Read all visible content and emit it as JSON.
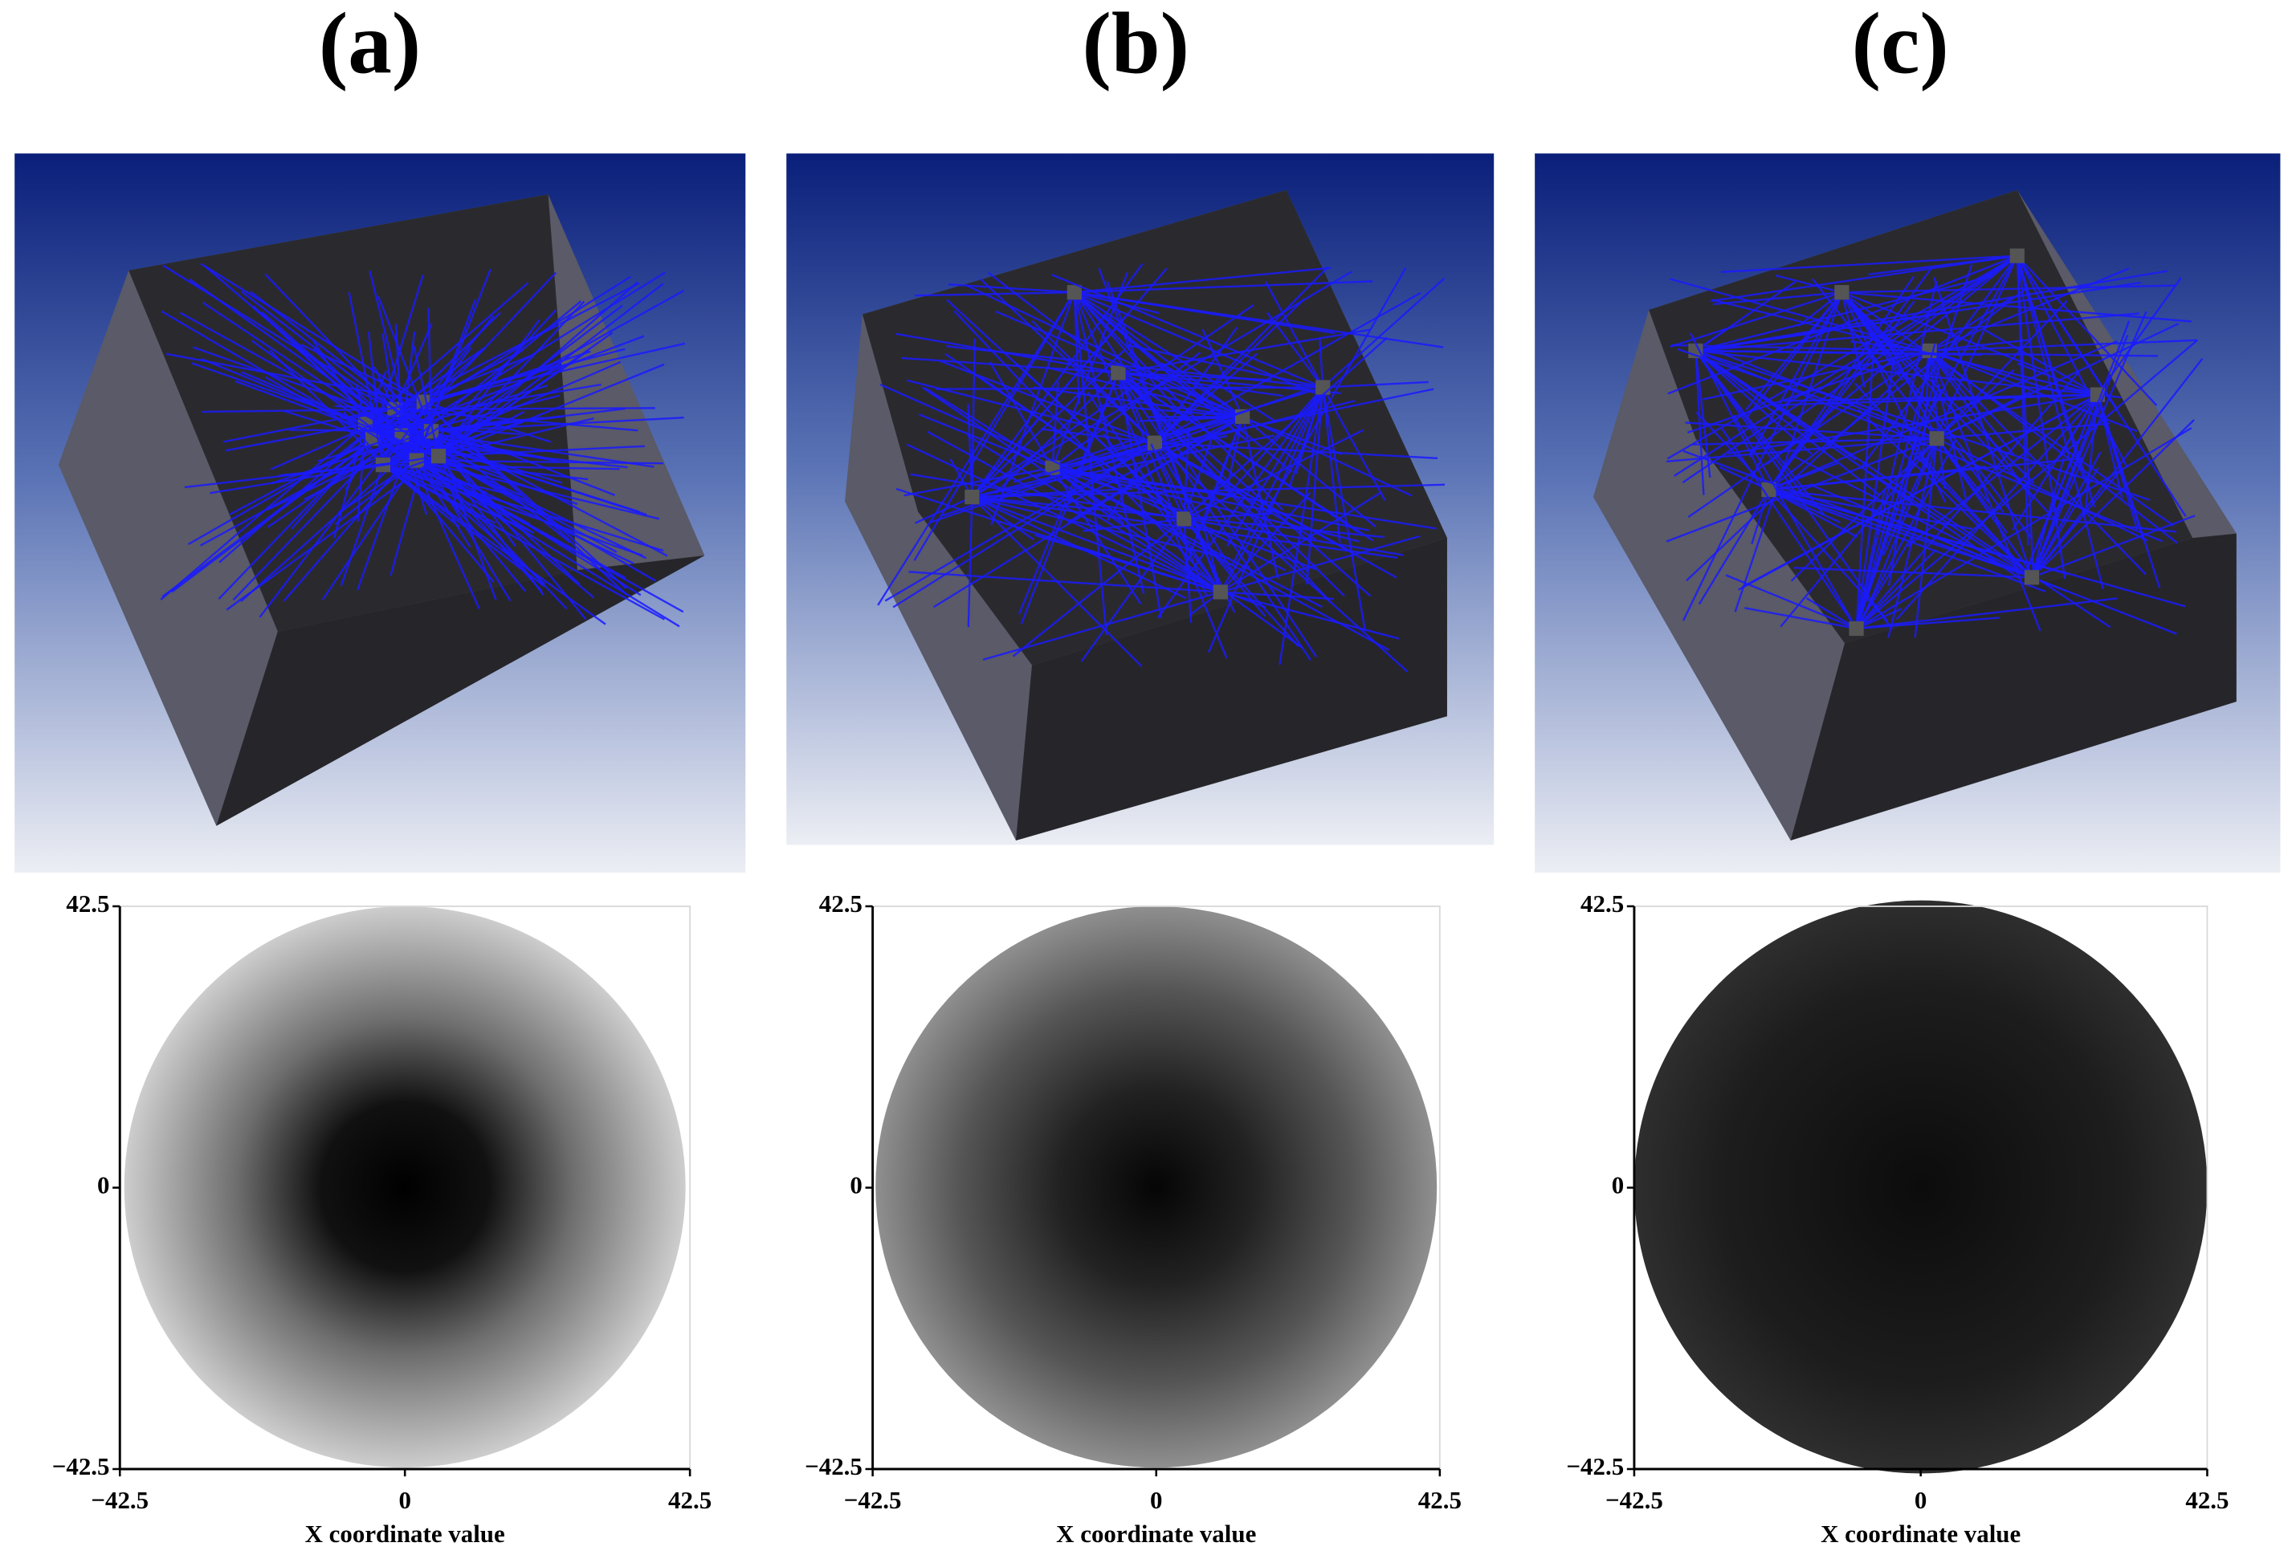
{
  "panels": [
    {
      "label": "(a)",
      "plot": {
        "xlabel": "X coordinate value",
        "xlim": [
          -42.5,
          42.5
        ],
        "ylim": [
          -42.5,
          42.5
        ],
        "xticks": [
          {
            "value": -42.5,
            "label": "−42.5"
          },
          0,
          42.5
        ],
        "yticks": [
          {
            "value": -42.5,
            "label": "−42.5"
          },
          0,
          42.5
        ]
      }
    },
    {
      "label": "(b)",
      "plot": {
        "xlabel": "X coordinate value",
        "xlim": [
          -42.5,
          42.5
        ],
        "ylim": [
          -42.5,
          42.5
        ],
        "xticks": [
          {
            "value": -42.5,
            "label": "−42.5"
          },
          0,
          42.5
        ],
        "yticks": [
          {
            "value": -42.5,
            "label": "−42.5"
          },
          0,
          42.5
        ]
      }
    },
    {
      "label": "(c)",
      "plot": {
        "xlabel": "X coordinate value",
        "xlim": [
          -42.5,
          42.5
        ],
        "ylim": [
          -42.5,
          42.5
        ],
        "xticks": [
          {
            "value": -42.5,
            "label": "−42.5"
          },
          0,
          42.5
        ],
        "yticks": [
          {
            "value": -42.5,
            "label": "−42.5"
          },
          0,
          42.5
        ]
      }
    }
  ]
}
